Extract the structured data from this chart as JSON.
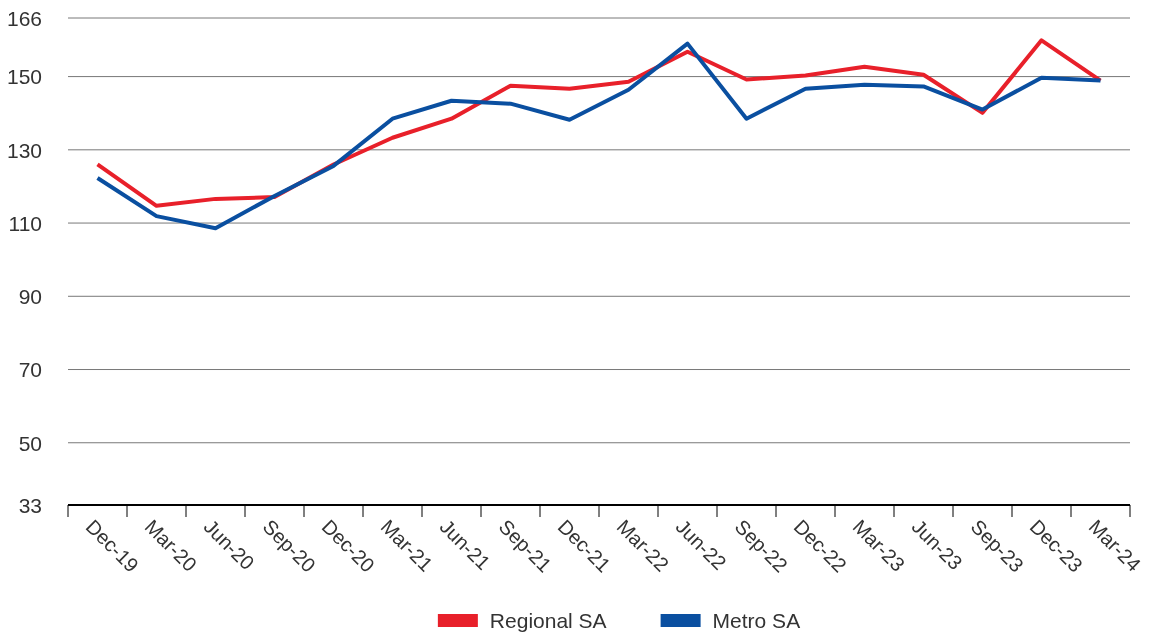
{
  "chart_data": {
    "type": "line",
    "categories": [
      "Dec-19",
      "Mar-20",
      "Jun-20",
      "Sep-20",
      "Dec-20",
      "Mar-21",
      "Jun-21",
      "Sep-21",
      "Dec-21",
      "Mar-22",
      "Jun-22",
      "Sep-22",
      "Dec-22",
      "Mar-23",
      "Jun-23",
      "Sep-23",
      "Dec-23",
      "Mar-24"
    ],
    "series": [
      {
        "name": "Regional SA",
        "color": "#e8202a",
        "values": [
          126,
          114.7,
          116.6,
          117.1,
          126,
          133.3,
          138.5,
          147.5,
          146.7,
          148.6,
          156.8,
          149.2,
          150.3,
          152.7,
          150.5,
          140.1,
          159.9,
          148.9
        ]
      },
      {
        "name": "Metro SA",
        "color": "#0a4fa0",
        "values": [
          122.3,
          111.9,
          108.6,
          117.4,
          125.6,
          138.5,
          143.4,
          142.6,
          138.2,
          146.4,
          159,
          138.5,
          146.7,
          147.8,
          147.3,
          141,
          149.7,
          148.9
        ]
      }
    ],
    "ylim": [
      33,
      166
    ],
    "yticks": [
      33,
      50,
      70,
      90,
      110,
      130,
      150,
      166
    ],
    "grid": "y",
    "legend": "bottom",
    "marker": "none",
    "line_style": "solid"
  }
}
